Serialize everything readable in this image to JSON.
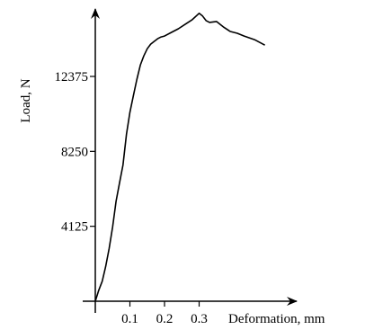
{
  "chart_data": {
    "type": "line",
    "title": "",
    "xlabel": "Deformation, mm",
    "ylabel": "Load, N",
    "xlim": [
      0,
      0.5
    ],
    "ylim": [
      0,
      17250
    ],
    "xticks": [
      0.1,
      0.2,
      0.3
    ],
    "xtick_labels": [
      "0.1",
      "0.2",
      "0.3"
    ],
    "yticks": [
      4125,
      8250,
      12375
    ],
    "ytick_labels": [
      "4125",
      "8250",
      "12375"
    ],
    "grid": false,
    "legend": "none",
    "line_color": "#000000",
    "series": [
      {
        "x": [
          0.0,
          0.01,
          0.02,
          0.03,
          0.04,
          0.05,
          0.06,
          0.07,
          0.08,
          0.09,
          0.1,
          0.11,
          0.12,
          0.13,
          0.14,
          0.15,
          0.16,
          0.17,
          0.18,
          0.19,
          0.2,
          0.22,
          0.24,
          0.26,
          0.28,
          0.3,
          0.31,
          0.32,
          0.33,
          0.35,
          0.37,
          0.39,
          0.41,
          0.43,
          0.46,
          0.49
        ],
        "y": [
          0,
          600,
          1100,
          1900,
          2900,
          4100,
          5500,
          6500,
          7500,
          9200,
          10400,
          11300,
          12200,
          13000,
          13500,
          13900,
          14150,
          14300,
          14450,
          14550,
          14600,
          14800,
          15000,
          15250,
          15500,
          15850,
          15700,
          15450,
          15350,
          15400,
          15100,
          14850,
          14750,
          14600,
          14400,
          14100
        ]
      }
    ]
  }
}
